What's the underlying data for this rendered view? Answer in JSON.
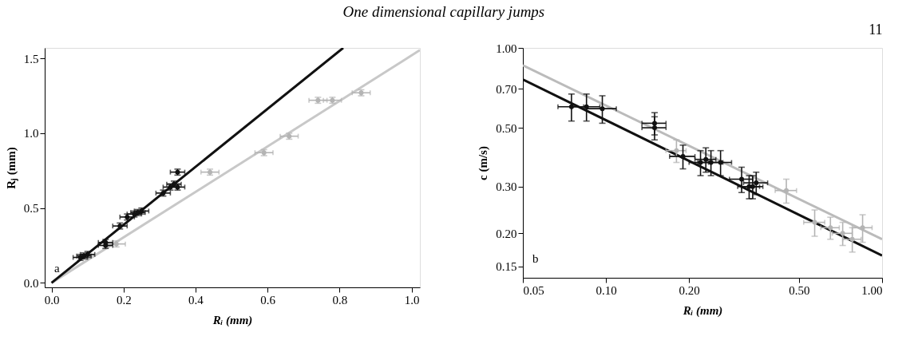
{
  "chart_data": [
    {
      "type": "scatter",
      "title": "One dimensional capillary jumps",
      "xlabel": "Rᵢ (mm)",
      "ylabel": "Rⱼ (mm)",
      "annotations": [
        "a"
      ],
      "xlim": [
        -0.019,
        1.023
      ],
      "ylim": [
        -0.03,
        1.57
      ],
      "xticks": [
        {
          "value": 0,
          "label": "0.0"
        },
        0.2,
        0.4,
        0.6,
        0.8,
        {
          "value": 1,
          "label": "1.0"
        }
      ],
      "yticks": [
        {
          "value": 0,
          "label": "0.0"
        },
        0.5,
        {
          "value": 1,
          "label": "1.0"
        },
        1.5
      ],
      "grid": false,
      "marker": "circle",
      "series": [
        {
          "type": "line",
          "marker": "none",
          "color": "#c8c8c8",
          "x": [
            0,
            1.023
          ],
          "values": [
            0,
            1.555
          ]
        },
        {
          "type": "line",
          "marker": "none",
          "color": "#111111",
          "x": [
            0,
            0.81
          ],
          "values": [
            0,
            1.57
          ]
        },
        {
          "color": "#b4b4b4",
          "x": [
            0.18,
            0.44,
            0.59,
            0.66,
            0.74,
            0.78,
            0.86
          ],
          "values": [
            0.26,
            0.74,
            0.87,
            0.98,
            1.22,
            1.22,
            1.27
          ],
          "errors": [
            0.02,
            0.02,
            0.02,
            0.02,
            0.02,
            0.02,
            0.02
          ],
          "xerrors": [
            0.025,
            0.025,
            0.025,
            0.025,
            0.025,
            0.025,
            0.025
          ]
        },
        {
          "color": "#111111",
          "x": [
            0.08,
            0.09,
            0.1,
            0.15,
            0.15,
            0.19,
            0.21,
            0.23,
            0.24,
            0.25,
            0.31,
            0.33,
            0.34,
            0.35,
            0.35
          ],
          "values": [
            0.17,
            0.18,
            0.19,
            0.25,
            0.27,
            0.38,
            0.44,
            0.46,
            0.47,
            0.48,
            0.6,
            0.64,
            0.66,
            0.64,
            0.74
          ],
          "errors": [
            0.02,
            0.02,
            0.02,
            0.02,
            0.02,
            0.02,
            0.02,
            0.02,
            0.02,
            0.02,
            0.02,
            0.02,
            0.02,
            0.02,
            0.02
          ],
          "xerrors": [
            0.02,
            0.02,
            0.02,
            0.02,
            0.02,
            0.02,
            0.02,
            0.02,
            0.02,
            0.02,
            0.02,
            0.02,
            0.02,
            0.02,
            0.02
          ]
        }
      ]
    },
    {
      "type": "scatter",
      "title": "11",
      "xlabel": "Rᵢ (mm)",
      "ylabel": "c (m/s)",
      "annotations": [
        "b"
      ],
      "log": "xy",
      "xlim": [
        0.05,
        1.0
      ],
      "ylim": [
        0.136,
        1.0
      ],
      "xticks": [
        0.05,
        {
          "value": 0.1,
          "label": "0.10"
        },
        {
          "value": 0.2,
          "label": "0.20"
        },
        {
          "value": 0.5,
          "label": "0.50"
        },
        {
          "value": 1,
          "label": "1.00"
        }
      ],
      "yticks": [
        0.15,
        {
          "value": 0.2,
          "label": "0.20"
        },
        {
          "value": 0.3,
          "label": "0.30"
        },
        {
          "value": 0.5,
          "label": "0.50"
        },
        {
          "value": 0.7,
          "label": "0.70"
        },
        {
          "value": 1,
          "label": "1.00"
        }
      ],
      "grid": false,
      "marker": "circle",
      "series": [
        {
          "type": "line",
          "marker": "none",
          "color": "#bbbbbb",
          "x": [
            0.05,
            1.0
          ],
          "values": [
            0.86,
            0.19
          ]
        },
        {
          "type": "line",
          "marker": "none",
          "color": "#111111",
          "x": [
            0.05,
            1.0
          ],
          "values": [
            0.76,
            0.165
          ]
        },
        {
          "color": "#b4b4b4",
          "x": [
            0.18,
            0.45,
            0.57,
            0.65,
            0.72,
            0.78,
            0.85
          ],
          "values": [
            0.41,
            0.29,
            0.22,
            0.21,
            0.2,
            0.19,
            0.21
          ],
          "errors": [
            0.04,
            0.03,
            0.025,
            0.02,
            0.02,
            0.02,
            0.025
          ],
          "xerrors": [
            0.015,
            0.04,
            0.05,
            0.05,
            0.06,
            0.06,
            0.07
          ]
        },
        {
          "color": "#111111",
          "x": [
            0.075,
            0.085,
            0.097,
            0.15,
            0.15,
            0.19,
            0.22,
            0.23,
            0.24,
            0.26,
            0.31,
            0.33,
            0.34,
            0.35
          ],
          "values": [
            0.6,
            0.6,
            0.59,
            0.5,
            0.52,
            0.39,
            0.37,
            0.38,
            0.37,
            0.37,
            0.32,
            0.3,
            0.3,
            0.31
          ],
          "errors": [
            0.07,
            0.07,
            0.07,
            0.05,
            0.05,
            0.04,
            0.04,
            0.04,
            0.04,
            0.04,
            0.035,
            0.03,
            0.03,
            0.03
          ],
          "xerrors": [
            0.008,
            0.01,
            0.012,
            0.015,
            0.015,
            0.02,
            0.02,
            0.02,
            0.025,
            0.025,
            0.03,
            0.03,
            0.03,
            0.035
          ]
        }
      ]
    }
  ]
}
